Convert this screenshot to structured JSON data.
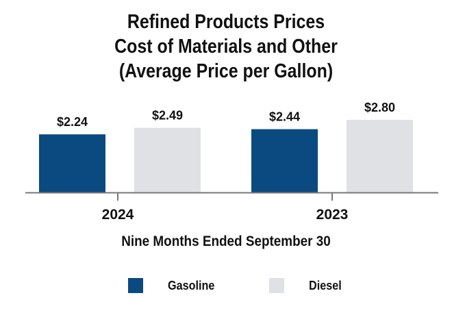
{
  "title": {
    "line1": "Refined Products Prices",
    "line2": "Cost of Materials and Other",
    "line3": "(Average Price per Gallon)"
  },
  "chart_data": {
    "type": "bar",
    "title": "Refined Products Prices Cost of Materials and Other (Average Price per Gallon)",
    "xlabel": "Nine Months Ended September 30",
    "ylabel": "",
    "categories": [
      "2024",
      "2023"
    ],
    "series": [
      {
        "name": "Gasoline",
        "values": [
          2.24,
          2.44
        ],
        "labels": [
          "$2.24",
          "$2.44"
        ],
        "color": "#0b4a80"
      },
      {
        "name": "Diesel",
        "values": [
          2.49,
          2.8
        ],
        "labels": [
          "$2.49",
          "$2.80"
        ],
        "color": "#e0e1e5"
      }
    ],
    "ylim": [
      0,
      2.8
    ],
    "grid": false,
    "legend_position": "bottom"
  }
}
